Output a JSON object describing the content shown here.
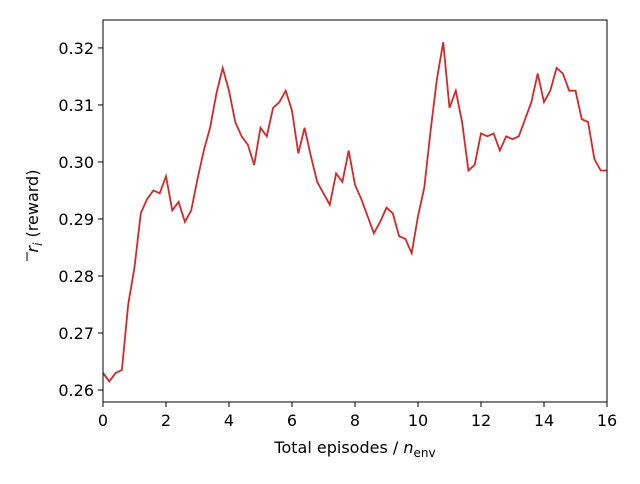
{
  "chart_data": {
    "type": "line",
    "x_label": {
      "text": "Total episodes / ",
      "math": "n",
      "sub": "env"
    },
    "y_label": {
      "math": "r",
      "sub": "i",
      "text": " (reward)"
    },
    "x": [
      0,
      0.2,
      0.4,
      0.6,
      0.8,
      1,
      1.2,
      1.4,
      1.6,
      1.8,
      2,
      2.2,
      2.4,
      2.6,
      2.8,
      3,
      3.2,
      3.4,
      3.6,
      3.8,
      4,
      4.2,
      4.4,
      4.6,
      4.8,
      5,
      5.2,
      5.4,
      5.6,
      5.8,
      6,
      6.2,
      6.4,
      6.6,
      6.8,
      7,
      7.2,
      7.4,
      7.6,
      7.8,
      8,
      8.2,
      8.4,
      8.6,
      8.8,
      9,
      9.2,
      9.4,
      9.6,
      9.8,
      10,
      10.2,
      10.4,
      10.6,
      10.8,
      11,
      11.2,
      11.4,
      11.6,
      11.8,
      12,
      12.2,
      12.4,
      12.6,
      12.8,
      13,
      13.2,
      13.4,
      13.6,
      13.8,
      14,
      14.2,
      14.4,
      14.6,
      14.8,
      15,
      15.2,
      15.4,
      15.6,
      15.8,
      16
    ],
    "series": [
      {
        "color": "#d62728",
        "values": [
          0.263,
          0.2615,
          0.263,
          0.2635,
          0.275,
          0.2815,
          0.291,
          0.2935,
          0.295,
          0.2945,
          0.2975,
          0.2915,
          0.293,
          0.2895,
          0.2915,
          0.297,
          0.302,
          0.306,
          0.312,
          0.3165,
          0.3125,
          0.307,
          0.3045,
          0.303,
          0.2995,
          0.306,
          0.3045,
          0.3095,
          0.3105,
          0.3125,
          0.309,
          0.3015,
          0.306,
          0.301,
          0.2965,
          0.2945,
          0.2925,
          0.298,
          0.2965,
          0.302,
          0.296,
          0.2935,
          0.2905,
          0.2875,
          0.2895,
          0.292,
          0.291,
          0.287,
          0.2865,
          0.284,
          0.2905,
          0.2955,
          0.3055,
          0.3145,
          0.321,
          0.3095,
          0.3125,
          0.307,
          0.2985,
          0.2995,
          0.305,
          0.3045,
          0.305,
          0.302,
          0.3045,
          0.304,
          0.3045,
          0.3075,
          0.3105,
          0.3155,
          0.3105,
          0.3125,
          0.3165,
          0.3155,
          0.3125,
          0.3125,
          0.3075,
          0.307,
          0.3005,
          0.2985,
          0.2985
        ]
      }
    ],
    "xlim": [
      0,
      16
    ],
    "xticks": [
      0,
      2,
      4,
      6,
      8,
      10,
      12,
      14,
      16
    ],
    "ylim": [
      0.2579,
      0.3249
    ],
    "yticks": [
      0.26,
      0.27,
      0.28,
      0.29,
      {
        "value": 0.3,
        "label": "0.30"
      },
      0.31,
      0.32
    ]
  }
}
